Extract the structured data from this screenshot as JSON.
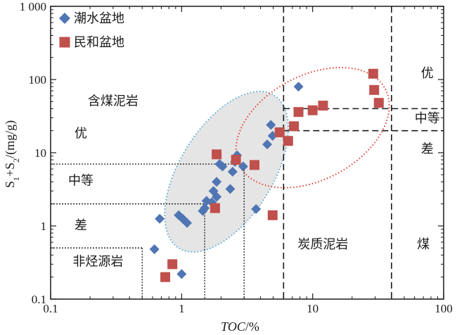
{
  "chart_data": {
    "type": "scatter",
    "x_scale": "log",
    "y_scale": "log",
    "xlim": [
      0.1,
      100
    ],
    "ylim": [
      0.1,
      1000
    ],
    "x_ticks": [
      {
        "value": 0.1,
        "label": "0.1"
      },
      {
        "value": 1,
        "label": "1"
      },
      {
        "value": 10,
        "label": "10"
      },
      {
        "value": 100,
        "label": "100"
      }
    ],
    "y_ticks": [
      {
        "value": 0.1,
        "label": "0.1"
      },
      {
        "value": 1,
        "label": "1"
      },
      {
        "value": 10,
        "label": "10"
      },
      {
        "value": 100,
        "label": "100"
      },
      {
        "value": 1000,
        "label": "1 000"
      }
    ],
    "xlabel": "TOC/%",
    "ylabel": "S1+S2/(mg/g)",
    "legend_position": "top-left",
    "series": [
      {
        "name": "潮水盆地",
        "marker": "diamond",
        "color": "#4f75b3",
        "points": [
          [
            0.62,
            0.48
          ],
          [
            0.68,
            1.25
          ],
          [
            0.95,
            1.4
          ],
          [
            1.0,
            0.22
          ],
          [
            1.02,
            1.25
          ],
          [
            1.1,
            1.1
          ],
          [
            1.45,
            1.6
          ],
          [
            1.5,
            1.75
          ],
          [
            1.55,
            2.2
          ],
          [
            1.7,
            2.1
          ],
          [
            1.75,
            3.0
          ],
          [
            1.85,
            2.5
          ],
          [
            1.85,
            4.0
          ],
          [
            1.95,
            7.0
          ],
          [
            2.05,
            6.5
          ],
          [
            2.35,
            3.2
          ],
          [
            2.45,
            5.5
          ],
          [
            2.55,
            7.5
          ],
          [
            2.65,
            9.2
          ],
          [
            2.95,
            6.5
          ],
          [
            3.7,
            1.7
          ],
          [
            4.5,
            13.0
          ],
          [
            4.8,
            24.0
          ],
          [
            4.95,
            17.0
          ],
          [
            7.8,
            80.0
          ]
        ]
      },
      {
        "name": "民和盆地",
        "marker": "square",
        "color": "#c0504d",
        "points": [
          [
            0.75,
            0.2
          ],
          [
            0.85,
            0.3
          ],
          [
            1.8,
            1.75
          ],
          [
            1.85,
            9.5
          ],
          [
            2.6,
            8.0
          ],
          [
            3.6,
            6.8
          ],
          [
            4.95,
            1.4
          ],
          [
            5.6,
            19.0
          ],
          [
            6.5,
            14.5
          ],
          [
            7.2,
            23.0
          ],
          [
            7.8,
            36.0
          ],
          [
            10.0,
            38.0
          ],
          [
            12.0,
            44.0
          ],
          [
            29.0,
            120.0
          ],
          [
            29.5,
            72.0
          ],
          [
            32.0,
            48.0
          ]
        ]
      }
    ],
    "region_labels": [
      {
        "text": "含煤泥岩",
        "x": 0.3,
        "y": 50
      },
      {
        "text": "炭质泥岩",
        "x": 12,
        "y": 0.55
      },
      {
        "text": "煤",
        "x": 70,
        "y": 0.55
      },
      {
        "text": "优",
        "x": 75,
        "y": 120
      },
      {
        "text": "中等",
        "x": 75,
        "y": 29
      },
      {
        "text": "差",
        "x": 75,
        "y": 11
      },
      {
        "text": "优",
        "x": 0.17,
        "y": 18
      },
      {
        "text": "中等",
        "x": 0.17,
        "y": 4.1
      },
      {
        "text": "差",
        "x": 0.17,
        "y": 1.0
      },
      {
        "text": "非烃源岩",
        "x": 0.23,
        "y": 0.32
      }
    ],
    "boundaries": {
      "toc_dashed": [
        6,
        40
      ],
      "coal_s_thresholds": [
        20,
        40
      ],
      "toc_dotted": [
        1.5,
        3
      ],
      "s_dotted": [
        0.5,
        2,
        7
      ],
      "nonsource_toc": 0.5
    },
    "ellipses": [
      {
        "series": "潮水盆地",
        "center": [
          2.2,
          5.5
        ],
        "color": "#5aa9d6"
      },
      {
        "series": "民和盆地",
        "center": [
          10,
          22
        ],
        "color": "#e03c31"
      }
    ]
  }
}
